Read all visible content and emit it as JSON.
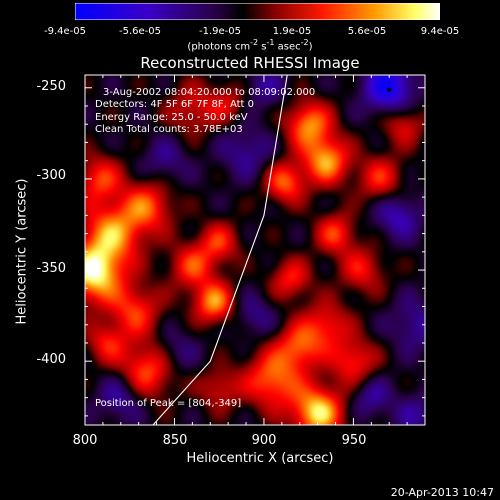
{
  "colorbar": {
    "ticks": [
      "-9.4e-05",
      "-5.6e-05",
      "-1.9e-05",
      "1.9e-05",
      "5.6e-05",
      "9.4e-05"
    ],
    "units_main": "(photons cm",
    "units_sup1": "-2",
    "units_mid": " s",
    "units_sup2": "-1",
    "units_end": " asec",
    "units_sup3": "-2",
    "units_close": ")"
  },
  "annotations": {
    "line1": "3-Aug-2002 08:04:20.000 to 08:09:02.000",
    "line2": "Detectors: 4F 5F 6F 7F 8F, Att 0",
    "line3": "Energy Range: 25.0 - 50.0 keV",
    "line4": "Clean     Total counts: 3.78E+03",
    "peak": "Position of Peak = [804,-349]"
  },
  "datestamp": "20-Apr-2013 10:47",
  "chart_data": {
    "type": "heatmap",
    "title": "Reconstructed RHESSI Image",
    "xlabel": "Heliocentric X (arcsec)",
    "ylabel": "Heliocentric Y (arcsec)",
    "xlim": [
      800,
      990
    ],
    "ylim": [
      -435,
      -243
    ],
    "x_ticks": [
      "800",
      "850",
      "900",
      "950"
    ],
    "y_ticks": [
      "-250",
      "-300",
      "-350",
      "-400"
    ],
    "colorbar_range": [
      -9.4e-05,
      9.4e-05
    ],
    "colormap": [
      "#0000ff",
      "#3a00c8",
      "#2a0048",
      "#000000",
      "#8a0000",
      "#ff0000",
      "#ff8a00",
      "#ffff66",
      "#ffffff"
    ],
    "peak": [
      804,
      -349
    ],
    "limb_line": [
      [
        838,
        -435
      ],
      [
        870,
        -400
      ],
      [
        900,
        -320
      ],
      [
        913,
        -243
      ]
    ],
    "blobs": [
      {
        "x": 805,
        "y": -352,
        "amp": 1.0,
        "s": 11
      },
      {
        "x": 815,
        "y": -330,
        "amp": 0.75,
        "s": 12
      },
      {
        "x": 835,
        "y": -315,
        "amp": 0.6,
        "s": 10
      },
      {
        "x": 808,
        "y": -300,
        "amp": 0.55,
        "s": 9
      },
      {
        "x": 828,
        "y": -372,
        "amp": 0.55,
        "s": 10
      },
      {
        "x": 835,
        "y": -405,
        "amp": 0.65,
        "s": 11
      },
      {
        "x": 812,
        "y": -390,
        "amp": 0.45,
        "s": 8
      },
      {
        "x": 860,
        "y": -348,
        "amp": 0.55,
        "s": 9
      },
      {
        "x": 875,
        "y": -335,
        "amp": 0.5,
        "s": 8
      },
      {
        "x": 872,
        "y": -368,
        "amp": 0.75,
        "s": 8
      },
      {
        "x": 860,
        "y": -262,
        "amp": 0.4,
        "s": 10
      },
      {
        "x": 880,
        "y": -258,
        "amp": 0.35,
        "s": 8
      },
      {
        "x": 875,
        "y": -415,
        "amp": 0.4,
        "s": 8
      },
      {
        "x": 905,
        "y": -410,
        "amp": 0.7,
        "s": 11
      },
      {
        "x": 930,
        "y": -428,
        "amp": 0.95,
        "s": 10
      },
      {
        "x": 920,
        "y": -392,
        "amp": 0.6,
        "s": 9
      },
      {
        "x": 935,
        "y": -380,
        "amp": 0.5,
        "s": 9
      },
      {
        "x": 950,
        "y": -400,
        "amp": 0.55,
        "s": 9
      },
      {
        "x": 925,
        "y": -270,
        "amp": 0.75,
        "s": 9
      },
      {
        "x": 935,
        "y": -290,
        "amp": 0.8,
        "s": 9
      },
      {
        "x": 912,
        "y": -302,
        "amp": 0.65,
        "s": 8
      },
      {
        "x": 940,
        "y": -330,
        "amp": 0.55,
        "s": 8
      },
      {
        "x": 915,
        "y": -355,
        "amp": 0.5,
        "s": 8
      },
      {
        "x": 955,
        "y": -350,
        "amp": 0.45,
        "s": 9
      },
      {
        "x": 965,
        "y": -300,
        "amp": 0.5,
        "s": 9
      },
      {
        "x": 978,
        "y": -270,
        "amp": 0.45,
        "s": 8
      },
      {
        "x": 970,
        "y": -250,
        "amp": -0.75,
        "s": 10
      },
      {
        "x": 960,
        "y": -420,
        "amp": -0.35,
        "s": 8
      },
      {
        "x": 975,
        "y": -320,
        "amp": -0.45,
        "s": 9
      },
      {
        "x": 890,
        "y": -285,
        "amp": -0.35,
        "s": 10
      },
      {
        "x": 900,
        "y": -250,
        "amp": -0.3,
        "s": 9
      },
      {
        "x": 845,
        "y": -290,
        "amp": -0.3,
        "s": 9
      },
      {
        "x": 850,
        "y": -395,
        "amp": -0.3,
        "s": 9
      },
      {
        "x": 820,
        "y": -420,
        "amp": -0.4,
        "s": 9
      },
      {
        "x": 895,
        "y": -375,
        "amp": -0.3,
        "s": 8
      },
      {
        "x": 985,
        "y": -380,
        "amp": -0.35,
        "s": 10
      },
      {
        "x": 985,
        "y": -430,
        "amp": -0.3,
        "s": 9
      }
    ]
  }
}
